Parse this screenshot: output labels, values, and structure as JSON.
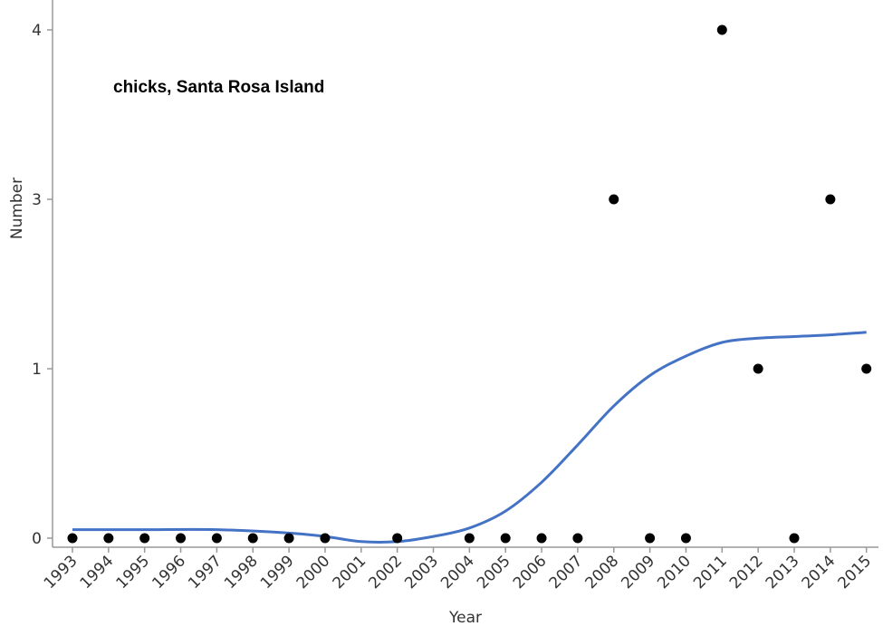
{
  "chart_data": {
    "type": "scatter",
    "annotation": "chicks, Santa Rosa Island",
    "xlabel": "Year",
    "ylabel": "Number",
    "y_ticks": [
      {
        "value": 0,
        "label": "0"
      },
      {
        "value": 1,
        "label": "1"
      },
      {
        "value": 3,
        "label": "3"
      },
      {
        "value": 4,
        "label": "4"
      }
    ],
    "x": [
      1993,
      1994,
      1995,
      1996,
      1997,
      1998,
      1999,
      2000,
      2002,
      2004,
      2005,
      2006,
      2007,
      2008,
      2009,
      2010,
      2011,
      2012,
      2013,
      2014,
      2015
    ],
    "y": [
      0,
      0,
      0,
      0,
      0,
      0,
      0,
      0,
      0,
      0,
      0,
      0,
      0,
      3,
      0,
      0,
      4,
      1,
      0,
      3,
      1
    ],
    "x_ticks": [
      "1993",
      "1994",
      "1995",
      "1996",
      "1997",
      "1998",
      "1999",
      "2000",
      "2001",
      "2002",
      "2003",
      "2004",
      "2005",
      "2006",
      "2007",
      "2008",
      "2009",
      "2010",
      "2011",
      "2012",
      "2013",
      "2014",
      "2015"
    ],
    "smooth_fit": {
      "x": [
        1993,
        1995,
        1997,
        1999,
        2000,
        2001,
        2002,
        2003,
        2004,
        2005,
        2006,
        2007,
        2008,
        2009,
        2010,
        2011,
        2012,
        2013,
        2014,
        2015
      ],
      "y": [
        0.05,
        0.05,
        0.05,
        0.03,
        0.01,
        -0.02,
        -0.02,
        0.01,
        0.06,
        0.16,
        0.33,
        0.55,
        0.78,
        0.96,
        1.15,
        1.31,
        1.36,
        1.38,
        1.4,
        1.43
      ]
    },
    "colors": {
      "points": "#000000",
      "fit_line": "#4472c4",
      "axis": "#999999"
    },
    "grid": false
  }
}
